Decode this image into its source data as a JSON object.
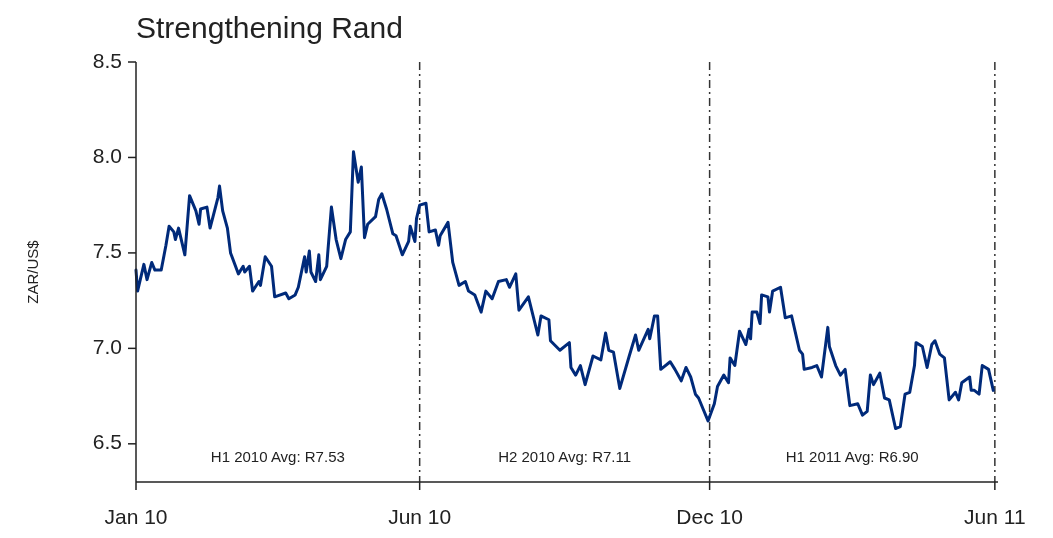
{
  "chart_data": {
    "type": "line",
    "title": "Strengthening Rand",
    "ylabel": "ZAR/US$",
    "xlim": [
      "2010-01-01",
      "2011-07-02"
    ],
    "xticks": [
      {
        "value": "2010-01-01",
        "label": "Jan 10"
      },
      {
        "value": "2010-06-30",
        "label": "Jun 10"
      },
      {
        "value": "2010-12-31",
        "label": "Dec 10"
      },
      {
        "value": "2011-06-30",
        "label": "Jun 11"
      }
    ],
    "ylim": [
      6.3,
      8.5
    ],
    "yticks": [
      6.5,
      {
        "value": 7,
        "label": "7.0"
      },
      7.5,
      {
        "value": 8,
        "label": "8.0"
      },
      8.5
    ],
    "grid": false,
    "marker": "none",
    "line_style": "solid",
    "ref_lines": [
      {
        "axis": "x",
        "value": "2010-06-30",
        "color": "#333333",
        "line_style": "dashdot"
      },
      {
        "axis": "x",
        "value": "2010-12-31",
        "color": "#333333",
        "line_style": "dashdot"
      },
      {
        "axis": "x",
        "value": "2011-06-30",
        "color": "#333333",
        "line_style": "dashdot"
      }
    ],
    "annotations": [
      "H1 2010 Avg: R7.53",
      "H2 2010 Avg: R7.11",
      "H1 2011 Avg: R6.90"
    ],
    "series": [
      {
        "color": "#002a7a",
        "x": [
          "2010-01-01",
          "2010-01-02",
          "2010-01-06",
          "2010-01-08",
          "2010-01-11",
          "2010-01-13",
          "2010-01-17",
          "2010-01-20",
          "2010-01-22",
          "2010-01-25",
          "2010-01-26",
          "2010-01-28",
          "2010-02-01",
          "2010-02-04",
          "2010-02-08",
          "2010-02-10",
          "2010-02-11",
          "2010-02-15",
          "2010-02-17",
          "2010-02-22",
          "2010-02-23",
          "2010-02-25",
          "2010-02-28",
          "2010-03-02",
          "2010-03-07",
          "2010-03-10",
          "2010-03-11",
          "2010-03-14",
          "2010-03-16",
          "2010-03-20",
          "2010-03-21",
          "2010-03-24",
          "2010-03-28",
          "2010-03-30",
          "2010-04-06",
          "2010-04-08",
          "2010-04-12",
          "2010-04-14",
          "2010-04-18",
          "2010-04-19",
          "2010-04-21",
          "2010-04-22",
          "2010-04-25",
          "2010-04-27",
          "2010-04-28",
          "2010-05-02",
          "2010-05-05",
          "2010-05-08",
          "2010-05-11",
          "2010-05-14",
          "2010-05-17",
          "2010-05-19",
          "2010-05-22",
          "2010-05-24",
          "2010-05-26",
          "2010-05-28",
          "2010-06-02",
          "2010-06-04",
          "2010-06-06",
          "2010-06-09",
          "2010-06-13",
          "2010-06-15",
          "2010-06-19",
          "2010-06-23",
          "2010-06-24",
          "2010-06-27",
          "2010-06-28",
          "2010-06-30",
          "2010-07-04",
          "2010-07-06",
          "2010-07-10",
          "2010-07-12",
          "2010-07-13",
          "2010-07-18",
          "2010-07-21",
          "2010-07-25",
          "2010-07-29",
          "2010-07-31",
          "2010-08-04",
          "2010-08-08",
          "2010-08-11",
          "2010-08-15",
          "2010-08-19",
          "2010-08-24",
          "2010-08-26",
          "2010-08-30",
          "2010-09-01",
          "2010-09-07",
          "2010-09-13",
          "2010-09-15",
          "2010-09-20",
          "2010-09-21",
          "2010-09-27",
          "2010-10-03",
          "2010-10-04",
          "2010-10-07",
          "2010-10-10",
          "2010-10-13",
          "2010-10-18",
          "2010-10-23",
          "2010-10-26",
          "2010-10-28",
          "2010-10-31",
          "2010-11-04",
          "2010-11-10",
          "2010-11-14",
          "2010-11-16",
          "2010-11-22",
          "2010-11-23",
          "2010-11-26",
          "2010-11-28",
          "2010-11-30",
          "2010-12-06",
          "2010-12-09",
          "2010-12-13",
          "2010-12-16",
          "2010-12-19",
          "2010-12-22",
          "2010-12-24",
          "2010-12-27",
          "2010-12-30",
          "2011-01-03",
          "2011-01-05",
          "2011-01-09",
          "2011-01-12",
          "2011-01-13",
          "2011-01-16",
          "2011-01-19",
          "2011-01-23",
          "2011-01-25",
          "2011-01-26",
          "2011-01-27",
          "2011-01-30",
          "2011-02-01",
          "2011-02-02",
          "2011-02-06",
          "2011-02-07",
          "2011-02-09",
          "2011-02-14",
          "2011-02-17",
          "2011-02-21",
          "2011-02-26",
          "2011-02-28",
          "2011-03-01",
          "2011-03-06",
          "2011-03-09",
          "2011-03-12",
          "2011-03-16",
          "2011-03-17",
          "2011-03-21",
          "2011-03-24",
          "2011-03-27",
          "2011-03-30",
          "2011-04-04",
          "2011-04-07",
          "2011-04-10",
          "2011-04-12",
          "2011-04-14",
          "2011-04-18",
          "2011-04-21",
          "2011-04-24",
          "2011-04-28",
          "2011-05-01",
          "2011-05-04",
          "2011-05-07",
          "2011-05-10",
          "2011-05-11",
          "2011-05-15",
          "2011-05-18",
          "2011-05-21",
          "2011-05-23",
          "2011-05-26",
          "2011-05-29",
          "2011-06-01",
          "2011-06-05",
          "2011-06-07",
          "2011-06-09",
          "2011-06-14",
          "2011-06-15",
          "2011-06-17",
          "2011-06-20",
          "2011-06-22",
          "2011-06-26",
          "2011-06-29"
        ],
        "values": [
          7.41,
          7.3,
          7.44,
          7.36,
          7.45,
          7.41,
          7.41,
          7.54,
          7.64,
          7.61,
          7.57,
          7.63,
          7.49,
          7.8,
          7.72,
          7.65,
          7.73,
          7.74,
          7.63,
          7.79,
          7.85,
          7.72,
          7.63,
          7.5,
          7.39,
          7.43,
          7.4,
          7.43,
          7.3,
          7.35,
          7.33,
          7.48,
          7.43,
          7.27,
          7.29,
          7.26,
          7.28,
          7.32,
          7.48,
          7.4,
          7.51,
          7.4,
          7.35,
          7.49,
          7.36,
          7.43,
          7.74,
          7.57,
          7.47,
          7.57,
          7.61,
          8.03,
          7.87,
          7.95,
          7.58,
          7.65,
          7.69,
          7.78,
          7.81,
          7.73,
          7.6,
          7.59,
          7.49,
          7.56,
          7.64,
          7.56,
          7.68,
          7.75,
          7.76,
          7.61,
          7.62,
          7.54,
          7.59,
          7.66,
          7.45,
          7.33,
          7.35,
          7.3,
          7.28,
          7.19,
          7.3,
          7.26,
          7.35,
          7.36,
          7.32,
          7.39,
          7.2,
          7.27,
          7.07,
          7.17,
          7.15,
          7.04,
          6.99,
          7.03,
          6.9,
          6.86,
          6.91,
          6.81,
          6.96,
          6.94,
          7.08,
          6.99,
          6.98,
          6.79,
          6.96,
          7.07,
          6.99,
          7.1,
          7.05,
          7.17,
          7.17,
          6.89,
          6.93,
          6.89,
          6.83,
          6.9,
          6.85,
          6.76,
          6.74,
          6.68,
          6.62,
          6.71,
          6.8,
          6.86,
          6.82,
          6.95,
          6.91,
          7.09,
          7.02,
          7.1,
          7.05,
          7.19,
          7.19,
          7.13,
          7.28,
          7.27,
          7.19,
          7.3,
          7.32,
          7.16,
          7.17,
          6.99,
          6.97,
          6.89,
          6.9,
          6.91,
          6.85,
          7.11,
          7.01,
          6.91,
          6.86,
          6.89,
          6.7,
          6.71,
          6.65,
          6.67,
          6.86,
          6.81,
          6.87,
          6.74,
          6.73,
          6.58,
          6.59,
          6.76,
          6.77,
          6.91,
          7.03,
          7.01,
          6.9,
          7.02,
          7.04,
          6.97,
          6.95,
          6.73,
          6.77,
          6.73,
          6.82,
          6.85,
          6.78,
          6.78,
          6.76,
          6.91,
          6.89,
          6.78
        ]
      }
    ]
  }
}
